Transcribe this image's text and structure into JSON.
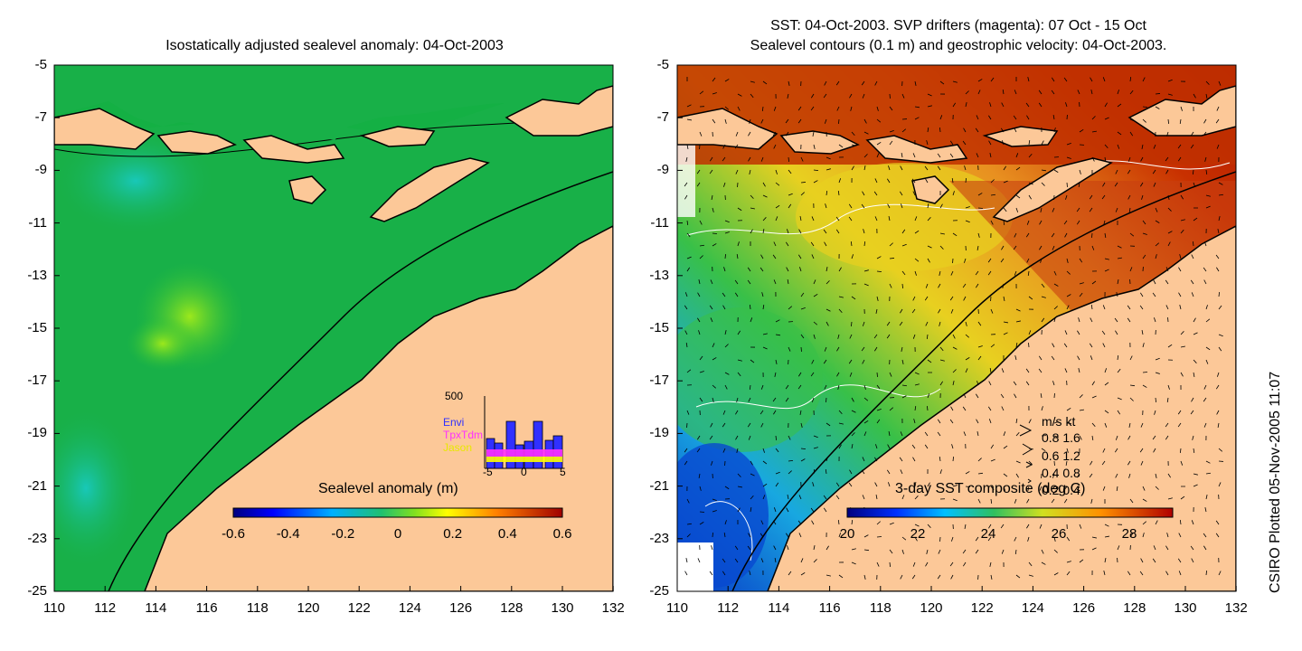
{
  "left_panel": {
    "title": "Isostatically adjusted sealevel anomaly: 04-Oct-2003",
    "colorbar": {
      "title": "Sealevel anomaly (m)",
      "labels": [
        "-0.6",
        "-0.4",
        "-0.2",
        "0",
        "0.2",
        "0.4",
        "0.6"
      ]
    },
    "histogram": {
      "ymax_label": "500",
      "x_labels": [
        "-5",
        "0",
        "5"
      ],
      "legend": [
        {
          "name": "Envi",
          "color": "#3030ff"
        },
        {
          "name": "TpxTdm",
          "color": "#ff30ff"
        },
        {
          "name": "Jason",
          "color": "#ffff00"
        }
      ]
    }
  },
  "right_panel": {
    "title_line1": "SST: 04-Oct-2003. SVP drifters (magenta): 07 Oct - 15 Oct",
    "title_line2": "Sealevel contours (0.1 m) and geostrophic velocity: 04-Oct-2003.",
    "colorbar": {
      "title": "3-day SST composite (deg C)",
      "labels": [
        "20",
        "22",
        "24",
        "26",
        "28"
      ]
    },
    "vector_legend": {
      "header": "m/s  kt",
      "rows": [
        "0.8  1.6",
        "0.6  1.2",
        "0.4  0.8",
        "0.2  0.4"
      ]
    }
  },
  "axes": {
    "y_labels": [
      "-5",
      "-7",
      "-9",
      "-11",
      "-13",
      "-15",
      "-17",
      "-19",
      "-21",
      "-23",
      "-25"
    ],
    "x_labels": [
      "110",
      "112",
      "114",
      "116",
      "118",
      "120",
      "122",
      "124",
      "126",
      "128",
      "130",
      "132"
    ]
  },
  "credit": "CSIRO Plotted 05-Nov-2005 11:07",
  "colors": {
    "land": "#fcc898",
    "ocean_anomaly": "#18b048",
    "sst_warm": "#c83000",
    "sst_mid": "#e8c820",
    "sst_cool": "#18a8e0"
  }
}
